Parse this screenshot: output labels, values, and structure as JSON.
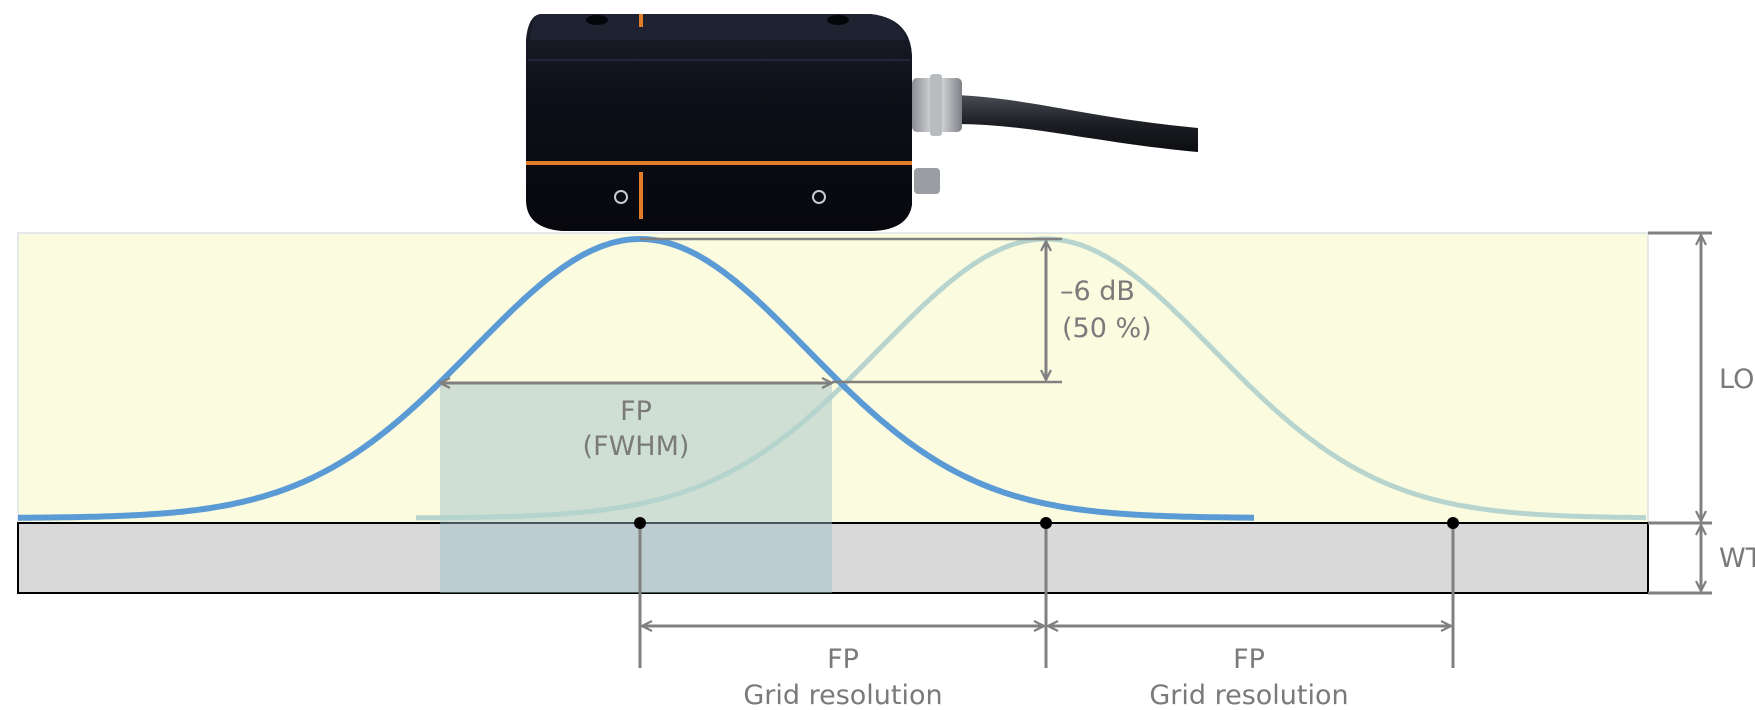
{
  "labels": {
    "attenuation_db": "–6 dB",
    "attenuation_pct": "(50 %)",
    "fp_focus": "FP",
    "fwhm": "(FWHM)",
    "fp_grid_1": "FP",
    "grid_resolution_1": "Grid resolution",
    "fp_grid_2": "FP",
    "grid_resolution_2": "Grid resolution",
    "right_label_top": "LO",
    "right_label_bottom": "WT"
  },
  "colors": {
    "zone_fill": "#fbfbdf",
    "plate_fill": "#d9d9d9",
    "beam_primary": "#5b9bd5",
    "beam_secondary": "#b3d3cc",
    "focus_band": "#9cbcc8",
    "dimension": "#808080",
    "sensor_body": "#0d0f18",
    "sensor_stripe": "#e07d2a"
  },
  "icons": [
    "sensor-device-image",
    "cable-icon",
    "grid-point-marker"
  ]
}
